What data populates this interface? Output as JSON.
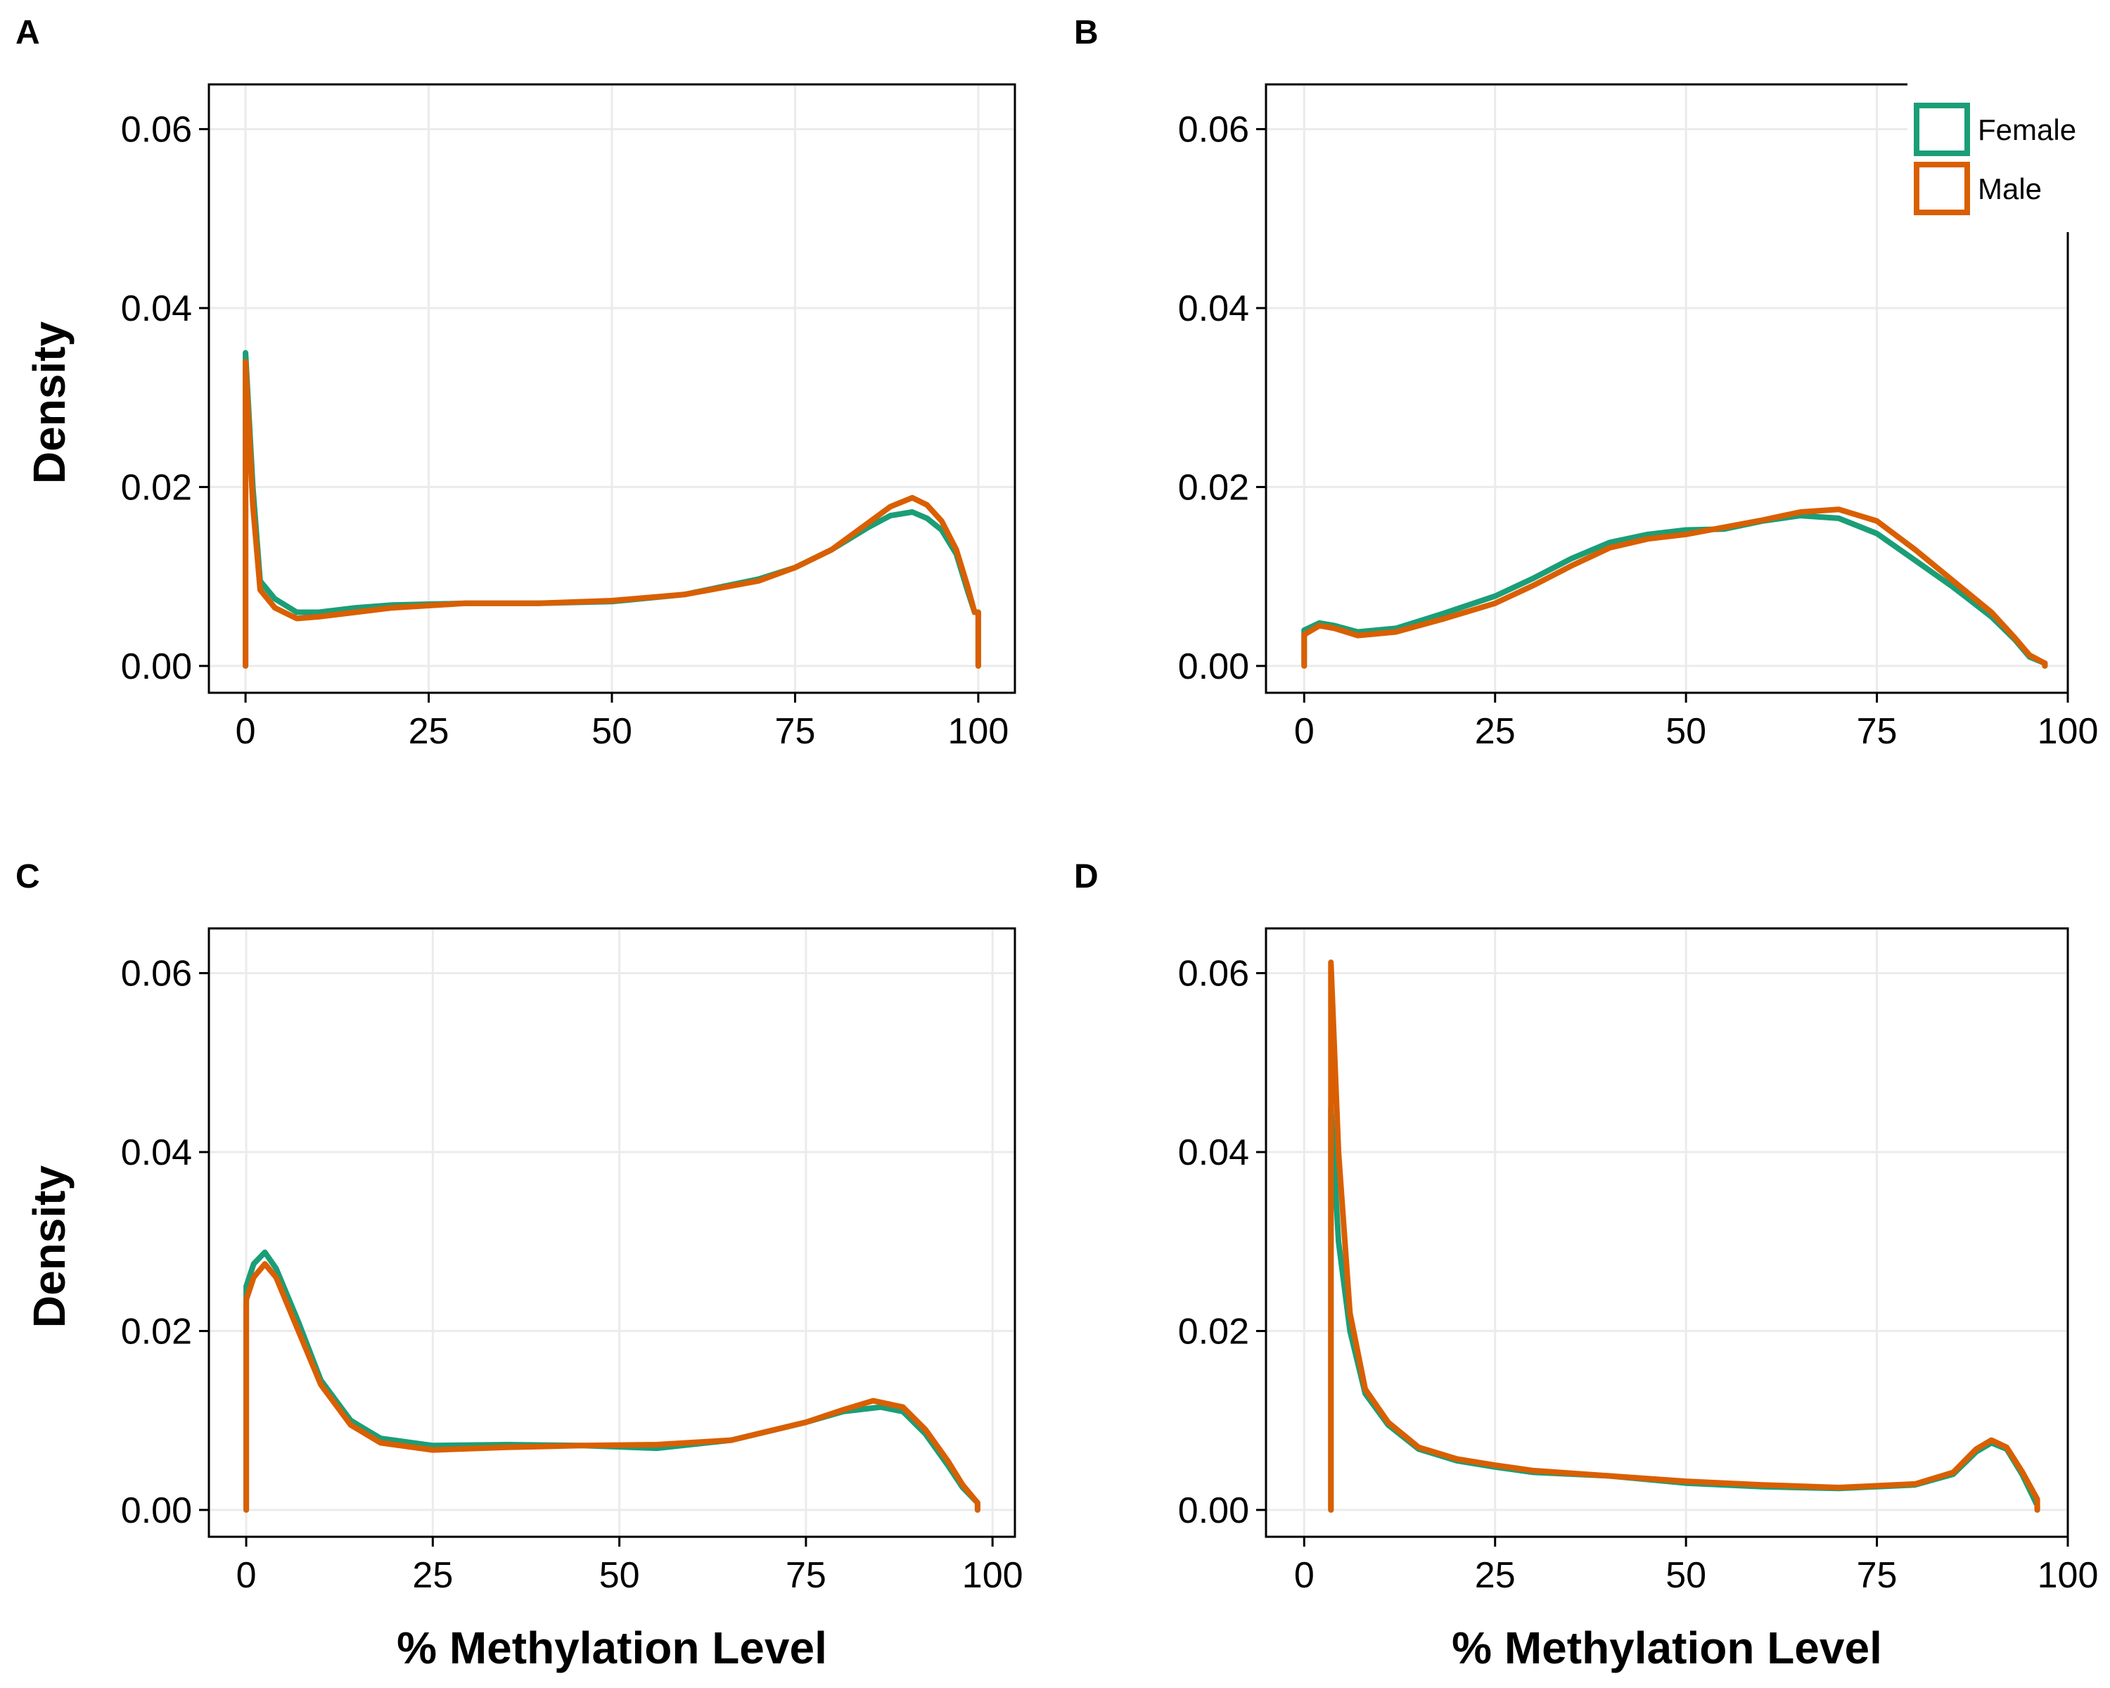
{
  "colors": {
    "Female": "#1b9e77",
    "Male": "#d95f02"
  },
  "legend": {
    "entries": [
      "Female",
      "Male"
    ]
  },
  "chart_data": [
    {
      "panel": "A",
      "type": "line",
      "xlabel": "",
      "ylabel": "Density",
      "xlim": [
        -5,
        105
      ],
      "ylim": [
        -0.003,
        0.065
      ],
      "x_ticks": [
        "0",
        "25",
        "50",
        "75",
        "100"
      ],
      "y_ticks": [
        "0.00",
        "0.02",
        "0.04",
        "0.06"
      ],
      "grid": true,
      "series": [
        {
          "name": "Female",
          "points": [
            [
              0,
              0
            ],
            [
              0,
              0.035
            ],
            [
              1,
              0.02
            ],
            [
              2,
              0.0095
            ],
            [
              4,
              0.0075
            ],
            [
              7,
              0.006
            ],
            [
              10,
              0.006
            ],
            [
              15,
              0.0065
            ],
            [
              20,
              0.0068
            ],
            [
              30,
              0.007
            ],
            [
              40,
              0.007
            ],
            [
              50,
              0.0072
            ],
            [
              60,
              0.008
            ],
            [
              70,
              0.0097
            ],
            [
              75,
              0.011
            ],
            [
              80,
              0.013
            ],
            [
              85,
              0.0155
            ],
            [
              88,
              0.0168
            ],
            [
              91,
              0.0172
            ],
            [
              93,
              0.0165
            ],
            [
              95,
              0.0152
            ],
            [
              97,
              0.0125
            ],
            [
              98.5,
              0.0085
            ],
            [
              99.5,
              0.006
            ],
            [
              100,
              0.006
            ],
            [
              100,
              0
            ]
          ]
        },
        {
          "name": "Male",
          "points": [
            [
              0,
              0
            ],
            [
              0,
              0.034
            ],
            [
              1,
              0.018
            ],
            [
              2,
              0.0085
            ],
            [
              4,
              0.0065
            ],
            [
              7,
              0.0053
            ],
            [
              10,
              0.0055
            ],
            [
              15,
              0.006
            ],
            [
              20,
              0.0065
            ],
            [
              30,
              0.007
            ],
            [
              40,
              0.007
            ],
            [
              50,
              0.0073
            ],
            [
              60,
              0.008
            ],
            [
              70,
              0.0095
            ],
            [
              75,
              0.011
            ],
            [
              80,
              0.013
            ],
            [
              85,
              0.016
            ],
            [
              88,
              0.0178
            ],
            [
              91,
              0.0188
            ],
            [
              93,
              0.018
            ],
            [
              95,
              0.0162
            ],
            [
              97,
              0.013
            ],
            [
              98.5,
              0.009
            ],
            [
              99.5,
              0.006
            ],
            [
              100,
              0.006
            ],
            [
              100,
              0
            ]
          ]
        }
      ]
    },
    {
      "panel": "B",
      "type": "line",
      "xlabel": "",
      "ylabel": "",
      "xlim": [
        -5,
        100
      ],
      "ylim": [
        -0.003,
        0.065
      ],
      "x_ticks": [
        "0",
        "25",
        "50",
        "75",
        "100"
      ],
      "y_ticks": [
        "0.00",
        "0.02",
        "0.04",
        "0.06"
      ],
      "grid": true,
      "legend_position": "top-right",
      "series": [
        {
          "name": "Female",
          "points": [
            [
              0,
              0
            ],
            [
              0,
              0.004
            ],
            [
              2,
              0.0048
            ],
            [
              4,
              0.0045
            ],
            [
              7,
              0.0038
            ],
            [
              12,
              0.0042
            ],
            [
              18,
              0.0058
            ],
            [
              25,
              0.0078
            ],
            [
              30,
              0.0098
            ],
            [
              35,
              0.012
            ],
            [
              40,
              0.0138
            ],
            [
              45,
              0.0147
            ],
            [
              50,
              0.0152
            ],
            [
              55,
              0.0153
            ],
            [
              60,
              0.0162
            ],
            [
              65,
              0.0168
            ],
            [
              70,
              0.0165
            ],
            [
              75,
              0.0148
            ],
            [
              80,
              0.0118
            ],
            [
              85,
              0.0088
            ],
            [
              90,
              0.0055
            ],
            [
              93,
              0.003
            ],
            [
              95,
              0.001
            ],
            [
              97,
              0.0003
            ],
            [
              97,
              0
            ]
          ]
        },
        {
          "name": "Male",
          "points": [
            [
              0,
              0
            ],
            [
              0,
              0.0035
            ],
            [
              2,
              0.0045
            ],
            [
              4,
              0.0042
            ],
            [
              7,
              0.0034
            ],
            [
              12,
              0.0038
            ],
            [
              18,
              0.0052
            ],
            [
              25,
              0.007
            ],
            [
              30,
              0.009
            ],
            [
              35,
              0.0112
            ],
            [
              40,
              0.0132
            ],
            [
              45,
              0.0142
            ],
            [
              50,
              0.0147
            ],
            [
              55,
              0.0155
            ],
            [
              60,
              0.0163
            ],
            [
              65,
              0.0172
            ],
            [
              70,
              0.0175
            ],
            [
              75,
              0.0162
            ],
            [
              80,
              0.013
            ],
            [
              85,
              0.0095
            ],
            [
              90,
              0.006
            ],
            [
              93,
              0.0032
            ],
            [
              95,
              0.0012
            ],
            [
              97,
              0.0003
            ],
            [
              97,
              0
            ]
          ]
        }
      ]
    },
    {
      "panel": "C",
      "type": "line",
      "xlabel": "% Methylation Level",
      "ylabel": "Density",
      "xlim": [
        -5,
        103
      ],
      "ylim": [
        -0.003,
        0.065
      ],
      "x_ticks": [
        "0",
        "25",
        "50",
        "75",
        "100"
      ],
      "y_ticks": [
        "0.00",
        "0.02",
        "0.04",
        "0.06"
      ],
      "grid": true,
      "series": [
        {
          "name": "Female",
          "points": [
            [
              0,
              0
            ],
            [
              0,
              0.025
            ],
            [
              1,
              0.0275
            ],
            [
              2.5,
              0.0288
            ],
            [
              4,
              0.027
            ],
            [
              7,
              0.021
            ],
            [
              10,
              0.0145
            ],
            [
              14,
              0.01
            ],
            [
              18,
              0.008
            ],
            [
              25,
              0.0072
            ],
            [
              35,
              0.0073
            ],
            [
              45,
              0.0072
            ],
            [
              55,
              0.0069
            ],
            [
              65,
              0.0078
            ],
            [
              75,
              0.0098
            ],
            [
              80,
              0.011
            ],
            [
              85,
              0.0115
            ],
            [
              88,
              0.011
            ],
            [
              91,
              0.0085
            ],
            [
              94,
              0.005
            ],
            [
              96,
              0.0025
            ],
            [
              98,
              0.0008
            ],
            [
              98,
              0
            ]
          ]
        },
        {
          "name": "Male",
          "points": [
            [
              0,
              0
            ],
            [
              0,
              0.0235
            ],
            [
              1,
              0.026
            ],
            [
              2.5,
              0.0275
            ],
            [
              4,
              0.026
            ],
            [
              7,
              0.02
            ],
            [
              10,
              0.014
            ],
            [
              14,
              0.0095
            ],
            [
              18,
              0.0075
            ],
            [
              25,
              0.0067
            ],
            [
              35,
              0.007
            ],
            [
              45,
              0.0072
            ],
            [
              55,
              0.0073
            ],
            [
              65,
              0.0078
            ],
            [
              75,
              0.0098
            ],
            [
              80,
              0.0112
            ],
            [
              84,
              0.0122
            ],
            [
              88,
              0.0115
            ],
            [
              91,
              0.009
            ],
            [
              94,
              0.0055
            ],
            [
              96,
              0.0028
            ],
            [
              98,
              0.0008
            ],
            [
              98,
              0
            ]
          ]
        }
      ]
    },
    {
      "panel": "D",
      "type": "line",
      "xlabel": "% Methylation Level",
      "ylabel": "",
      "xlim": [
        -5,
        100
      ],
      "ylim": [
        -0.003,
        0.065
      ],
      "x_ticks": [
        "0",
        "25",
        "50",
        "75",
        "100"
      ],
      "y_ticks": [
        "0.00",
        "0.02",
        "0.04",
        "0.06"
      ],
      "grid": true,
      "series": [
        {
          "name": "Female",
          "points": [
            [
              3.5,
              0
            ],
            [
              3.5,
              0.045
            ],
            [
              4.5,
              0.03
            ],
            [
              6,
              0.02
            ],
            [
              8,
              0.013
            ],
            [
              11,
              0.0095
            ],
            [
              15,
              0.0068
            ],
            [
              20,
              0.0055
            ],
            [
              25,
              0.0048
            ],
            [
              30,
              0.0042
            ],
            [
              40,
              0.0038
            ],
            [
              50,
              0.003
            ],
            [
              60,
              0.0026
            ],
            [
              70,
              0.0024
            ],
            [
              80,
              0.0028
            ],
            [
              85,
              0.004
            ],
            [
              88,
              0.0065
            ],
            [
              90,
              0.0075
            ],
            [
              92,
              0.0068
            ],
            [
              94,
              0.004
            ],
            [
              96,
              0.0005
            ],
            [
              96,
              0
            ]
          ]
        },
        {
          "name": "Male",
          "points": [
            [
              3.5,
              0
            ],
            [
              3.5,
              0.0612
            ],
            [
              4.5,
              0.04
            ],
            [
              6,
              0.022
            ],
            [
              8,
              0.0135
            ],
            [
              11,
              0.0098
            ],
            [
              15,
              0.007
            ],
            [
              20,
              0.0057
            ],
            [
              25,
              0.005
            ],
            [
              30,
              0.0044
            ],
            [
              40,
              0.0038
            ],
            [
              50,
              0.0032
            ],
            [
              60,
              0.0028
            ],
            [
              70,
              0.0025
            ],
            [
              80,
              0.0029
            ],
            [
              85,
              0.0042
            ],
            [
              88,
              0.0068
            ],
            [
              90,
              0.0078
            ],
            [
              92,
              0.007
            ],
            [
              94,
              0.0043
            ],
            [
              96,
              0.0012
            ],
            [
              96,
              0
            ]
          ]
        }
      ]
    }
  ]
}
